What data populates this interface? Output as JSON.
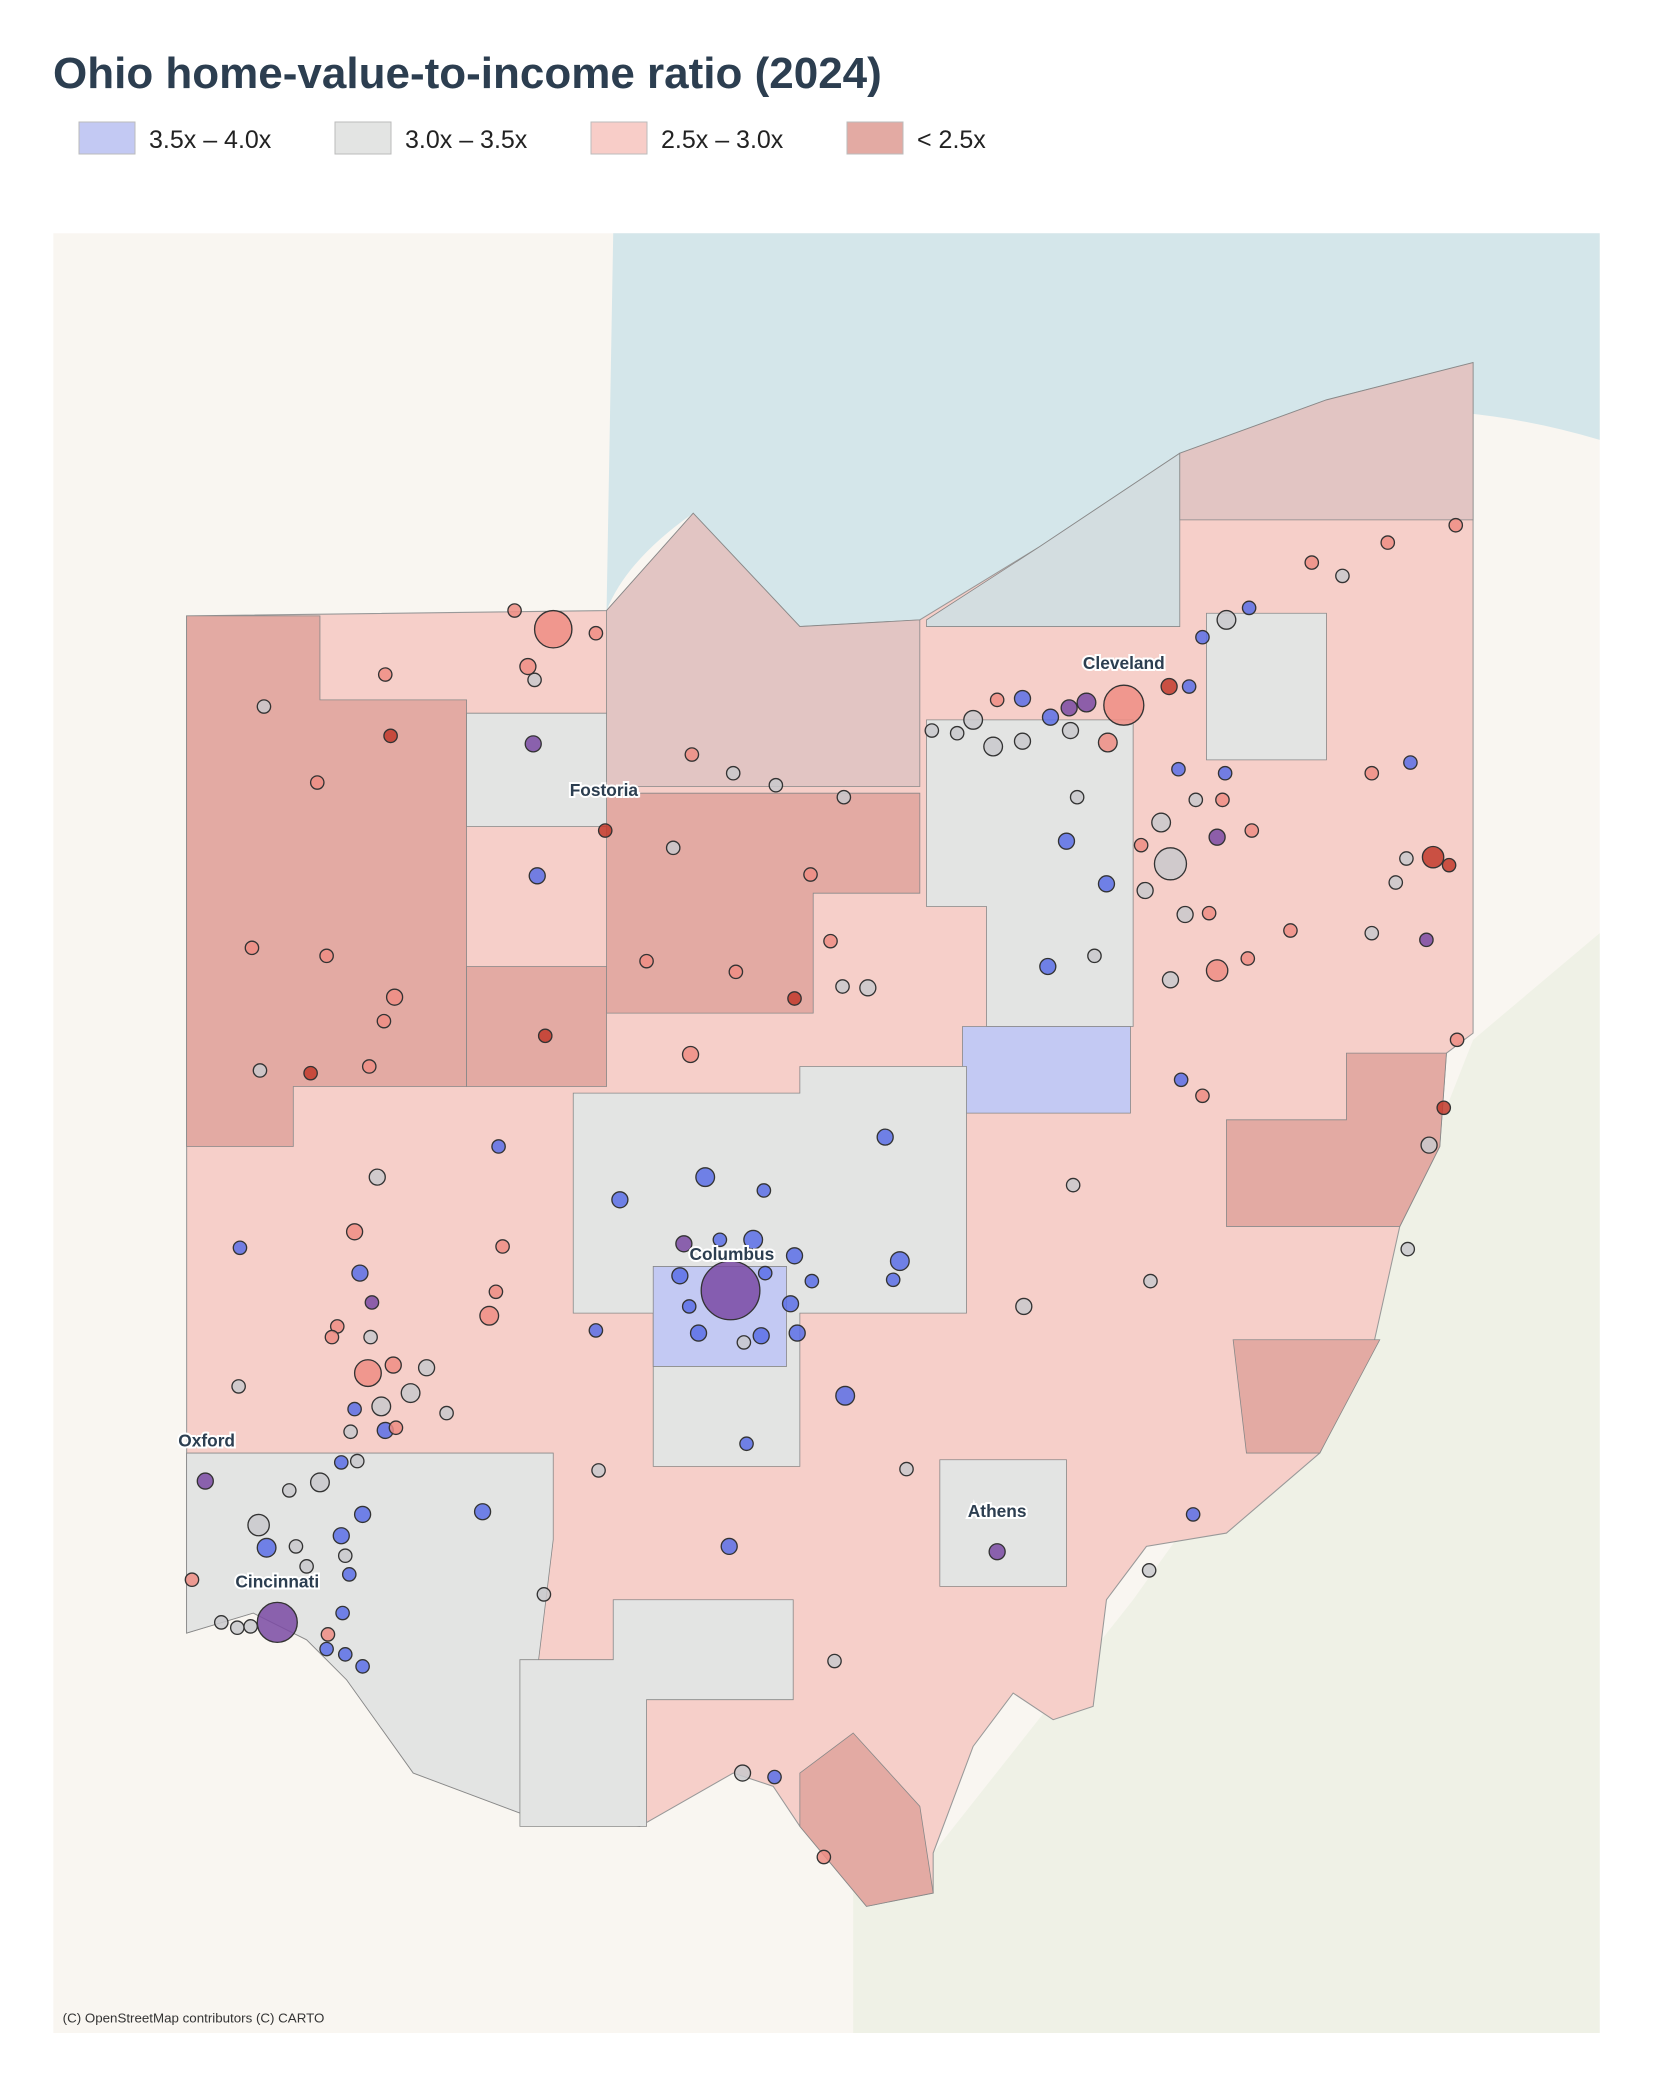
{
  "title": "Ohio home-value-to-income ratio (2024)",
  "legend": [
    {
      "label": "3.5x – 4.0x",
      "color": "#c3c9f3"
    },
    {
      "label": "3.0x – 3.5x",
      "color": "#e3e4e3"
    },
    {
      "label": "2.5x – 3.0x",
      "color": "#f8cdc8"
    },
    {
      "label": "< 2.5x",
      "color": "#e3aaa3"
    }
  ],
  "cities": [
    "Cleveland",
    "Fostoria",
    "Columbus",
    "Oxford",
    "Athens",
    "Cincinnati"
  ],
  "attribution": "(C) OpenStreetMap contributors (C) CARTO"
}
